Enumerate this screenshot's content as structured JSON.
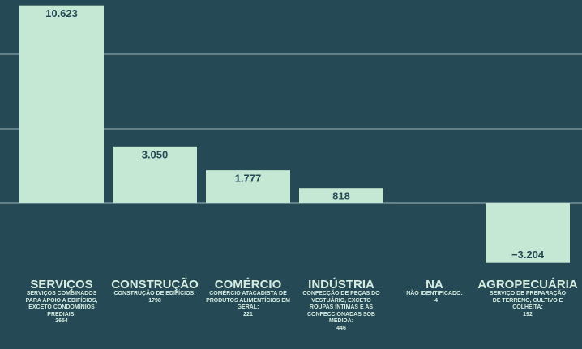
{
  "chart_data": {
    "type": "bar",
    "categories": [
      "SERVIÇOS",
      "CONSTRUÇÃO",
      "COMÉRCIO",
      "INDÚSTRIA",
      "NA",
      "AGROPECUÁRIA"
    ],
    "values": [
      10623,
      3050,
      1777,
      818,
      -4,
      -3204
    ],
    "value_labels": [
      "10.623",
      "3.050",
      "1.777",
      "818",
      "−4",
      "−3.204"
    ],
    "details": [
      {
        "text": "SERVIÇOS COMBINADOS PARA APOIO A EDIFÍCIOS, EXCETO CONDOMÍNIOS PREDIAIS:",
        "value": 2654
      },
      {
        "text": "CONSTRUÇÃO DE EDIFÍCIOS:",
        "value": 1798
      },
      {
        "text": "COMÉRCIO ATACADISTA DE PRODUTOS ALIMENTÍCIOS EM GERAL:",
        "value": 221
      },
      {
        "text": "CONFECÇÃO DE PEÇAS DO VESTUÁRIO, EXCETO ROUPAS ÍNTIMAS E AS CONFECCIONADAS SOB MEDIDA:",
        "value": 446
      },
      {
        "text": "NÃO IDENTIFICADO:",
        "value": -4,
        "label": "−4"
      },
      {
        "text": "SERVIÇO DE PREPARAÇÃO DE TERRENO, CULTIVO E COLHEITA:",
        "value": 192
      }
    ],
    "color": "#c5e8d5",
    "ylim": [
      -7800,
      10900
    ],
    "yticks": [
      0,
      4000,
      8000
    ],
    "grid": true,
    "ytick_labels": false
  }
}
